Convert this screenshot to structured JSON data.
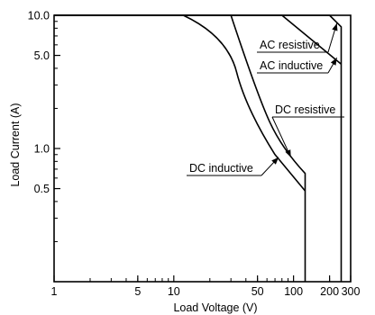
{
  "chart_data": {
    "type": "line",
    "title": "",
    "xlabel": "Load Voltage (V)",
    "ylabel": "Load Current (A)",
    "xscale": "log",
    "yscale": "log",
    "xlim": [
      1,
      300
    ],
    "ylim": [
      0.1,
      10
    ],
    "grid": false,
    "legend": "none",
    "x_ticks": [
      {
        "value": 1,
        "label": "1"
      },
      {
        "value": 5,
        "label": "5"
      },
      {
        "value": 10,
        "label": "10"
      },
      {
        "value": 50,
        "label": "50"
      },
      {
        "value": 100,
        "label": "100"
      },
      {
        "value": 200,
        "label": "200"
      },
      {
        "value": 300,
        "label": "300"
      }
    ],
    "y_ticks": [
      {
        "value": 10,
        "label": "10.0"
      },
      {
        "value": 5,
        "label": "5.0"
      },
      {
        "value": 1,
        "label": "1.0"
      },
      {
        "value": 0.5,
        "label": "0.5"
      }
    ],
    "series": [
      {
        "name": "AC resistive",
        "points": [
          [
            1,
            10
          ],
          [
            200,
            10
          ],
          [
            250,
            8.2
          ],
          [
            250,
            0.1
          ]
        ]
      },
      {
        "name": "AC inductive",
        "points": [
          [
            1,
            10
          ],
          [
            80,
            10
          ],
          [
            250,
            4.3
          ]
        ]
      },
      {
        "name": "DC resistive",
        "points": [
          [
            1,
            10
          ],
          [
            30,
            10
          ],
          [
            50,
            2.5
          ],
          [
            80,
            1.0
          ],
          [
            125,
            0.65
          ],
          [
            125,
            0.1
          ]
        ]
      },
      {
        "name": "DC inductive",
        "points": [
          [
            1,
            10
          ],
          [
            12,
            10
          ],
          [
            28,
            7.0
          ],
          [
            40,
            2.0
          ],
          [
            70,
            0.9
          ],
          [
            125,
            0.48
          ]
        ]
      }
    ],
    "callouts": [
      {
        "label": "AC resistive",
        "series": "AC resistive",
        "target": [
          230,
          8.7
        ]
      },
      {
        "label": "AC inductive",
        "series": "AC inductive",
        "target": [
          230,
          4.8
        ]
      },
      {
        "label": "DC resistive",
        "series": "DC resistive",
        "target": [
          95,
          0.86
        ]
      },
      {
        "label": "DC inductive",
        "series": "DC inductive",
        "target": [
          75,
          0.86
        ]
      }
    ]
  }
}
